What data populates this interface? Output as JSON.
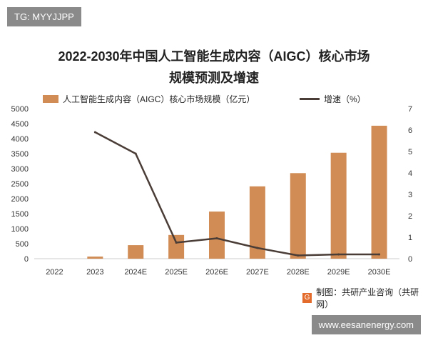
{
  "watermark_tag": "TG: MYYJJPP",
  "site_badge": "www.eesanenergy.com",
  "source": {
    "logo_text": "G",
    "label": "制图：共研产业咨询（共研网）"
  },
  "chart_data": {
    "type": "bar",
    "title_line1": "2022-2030年中国人工智能生成内容（AIGC）核心市场",
    "title_line2": "规模预测及增速",
    "categories": [
      "2022",
      "2023",
      "2024E",
      "2025E",
      "2026E",
      "2027E",
      "2028E",
      "2029E",
      "2030E"
    ],
    "series": [
      {
        "name": "人工智能生成内容（AIGC）核心市场规模（亿元）",
        "type": "bar",
        "axis": "left",
        "color": "#D08C54",
        "values": [
          0,
          70,
          450,
          790,
          1570,
          2410,
          2850,
          3530,
          4430
        ]
      },
      {
        "name": "增速（%）",
        "type": "line",
        "axis": "right",
        "color": "#4a3c36",
        "values": [
          null,
          5.9,
          4.9,
          0.75,
          0.95,
          0.5,
          0.15,
          0.2,
          0.2
        ]
      }
    ],
    "y_left": {
      "min": 0,
      "max": 5000,
      "ticks": [
        "0",
        "500",
        "1000",
        "1500",
        "2000",
        "2500",
        "3000",
        "3500",
        "4000",
        "4500",
        "5000"
      ]
    },
    "y_right": {
      "min": 0,
      "max": 7,
      "ticks": [
        "0",
        "1",
        "2",
        "3",
        "4",
        "5",
        "6",
        "7"
      ]
    },
    "legend_position": "top",
    "grid": false
  }
}
